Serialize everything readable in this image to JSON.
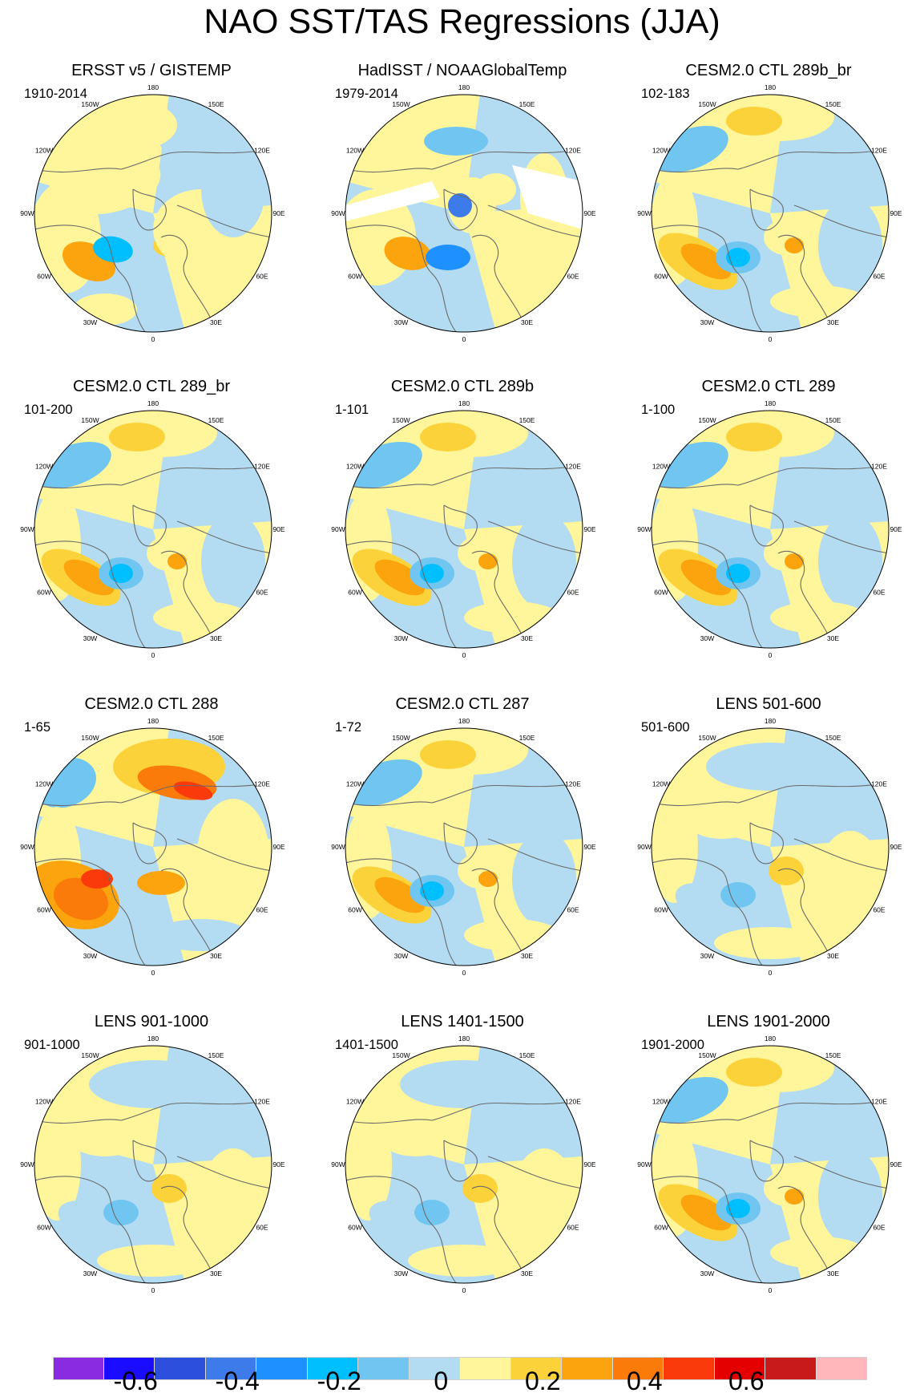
{
  "figure": {
    "title": "NAO SST/TAS Regressions (JJA)"
  },
  "panels": [
    {
      "title": "ERSST v5 / GISTEMP",
      "period": "1910-2014",
      "style": "obs"
    },
    {
      "title": "HadISST / NOAAGlobalTemp",
      "period": "1979-2014",
      "style": "obs2"
    },
    {
      "title": "CESM2.0 CTL 289b_br",
      "period": "102-183",
      "style": "ctl"
    },
    {
      "title": "CESM2.0 CTL 289_br",
      "period": "101-200",
      "style": "ctl"
    },
    {
      "title": "CESM2.0 CTL 289b",
      "period": "1-101",
      "style": "ctl"
    },
    {
      "title": "CESM2.0 CTL 289",
      "period": "1-100",
      "style": "ctl"
    },
    {
      "title": "CESM2.0 CTL 288",
      "period": "1-65",
      "style": "strong"
    },
    {
      "title": "CESM2.0 CTL 287",
      "period": "1-72",
      "style": "ctl"
    },
    {
      "title": "LENS 501-600",
      "period": "501-600",
      "style": "weak"
    },
    {
      "title": "LENS 901-1000",
      "period": "901-1000",
      "style": "weak"
    },
    {
      "title": "LENS 1401-1500",
      "period": "1401-1500",
      "style": "weak"
    },
    {
      "title": "LENS 1901-2000",
      "period": "1901-2000",
      "style": "ctl"
    }
  ],
  "map": {
    "projection": "north-polar-stereographic",
    "longitude_labels": [
      "180",
      "150E",
      "120E",
      "90E",
      "60E",
      "30E",
      "0",
      "30W",
      "60W",
      "90W",
      "120W",
      "150W"
    ]
  },
  "colorbar": {
    "colors": [
      "#8a2be2",
      "#1a0dff",
      "#2c4fdc",
      "#3e7bea",
      "#1e90ff",
      "#00bfff",
      "#70c6f0",
      "#b3dcf2",
      "#fff59a",
      "#fcd23a",
      "#fba40e",
      "#fa7a0a",
      "#fa3a0a",
      "#e40000",
      "#c81a1a",
      "#ffb7bb"
    ],
    "levels": [
      -0.7,
      -0.6,
      -0.5,
      -0.4,
      -0.3,
      -0.2,
      -0.1,
      0,
      0.1,
      0.2,
      0.3,
      0.4,
      0.5,
      0.6,
      0.7
    ],
    "tick_labels": [
      "-0.6",
      "-0.4",
      "-0.2",
      "0",
      "0.2",
      "0.4",
      "0.6"
    ]
  },
  "colors": {
    "land_outline": "#6a6a6a",
    "missing": "#ffffff"
  }
}
